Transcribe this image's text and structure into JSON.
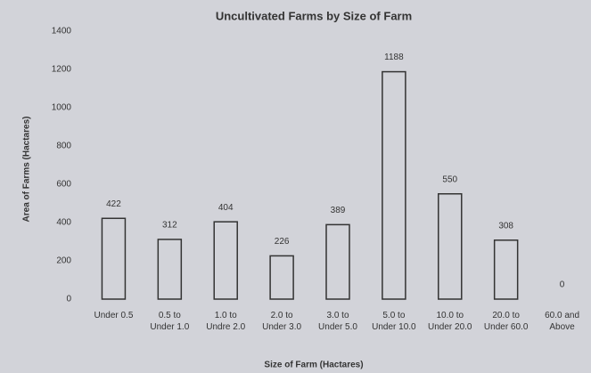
{
  "chart_data": {
    "type": "bar",
    "title": "Uncultivated Farms by Size of Farm",
    "x_label": "Size of Farm (Hactares)",
    "y_label": "Area of Farms (Hactares)",
    "categories": [
      "Under 0.5",
      "0.5 to Under 1.0",
      "1.0 to Undre 2.0",
      "2.0 to Under 3.0",
      "3.0 to Under 5.0",
      "5.0 to Under 10.0",
      "10.0 to Under 20.0",
      "20.0 to Under 60.0",
      "60.0 and Above"
    ],
    "values": [
      422,
      312,
      404,
      226,
      389,
      1188,
      550,
      308,
      0
    ],
    "color": "#333333",
    "ylim": [
      0,
      1400
    ],
    "yticks": [
      0,
      200,
      400,
      600,
      800,
      1000,
      1200,
      1400
    ],
    "grid": false
  }
}
